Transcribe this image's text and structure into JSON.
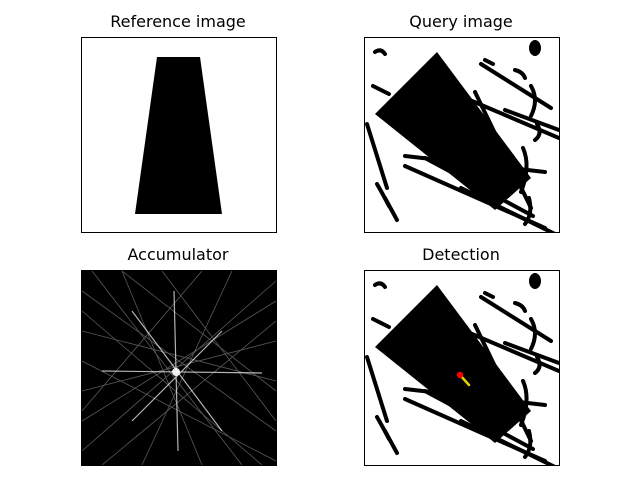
{
  "figure": {
    "panels": {
      "reference": {
        "title": "Reference image"
      },
      "query": {
        "title": "Query image"
      },
      "accumulator": {
        "title": "Accumulator"
      },
      "detection": {
        "title": "Detection"
      }
    }
  },
  "colors": {
    "shape_fill": "#000000",
    "accumulator_background": "#000000",
    "accumulator_lines": "#ffffff",
    "detection_point": "#ff0000",
    "detection_arrow": "#e8d500"
  }
}
